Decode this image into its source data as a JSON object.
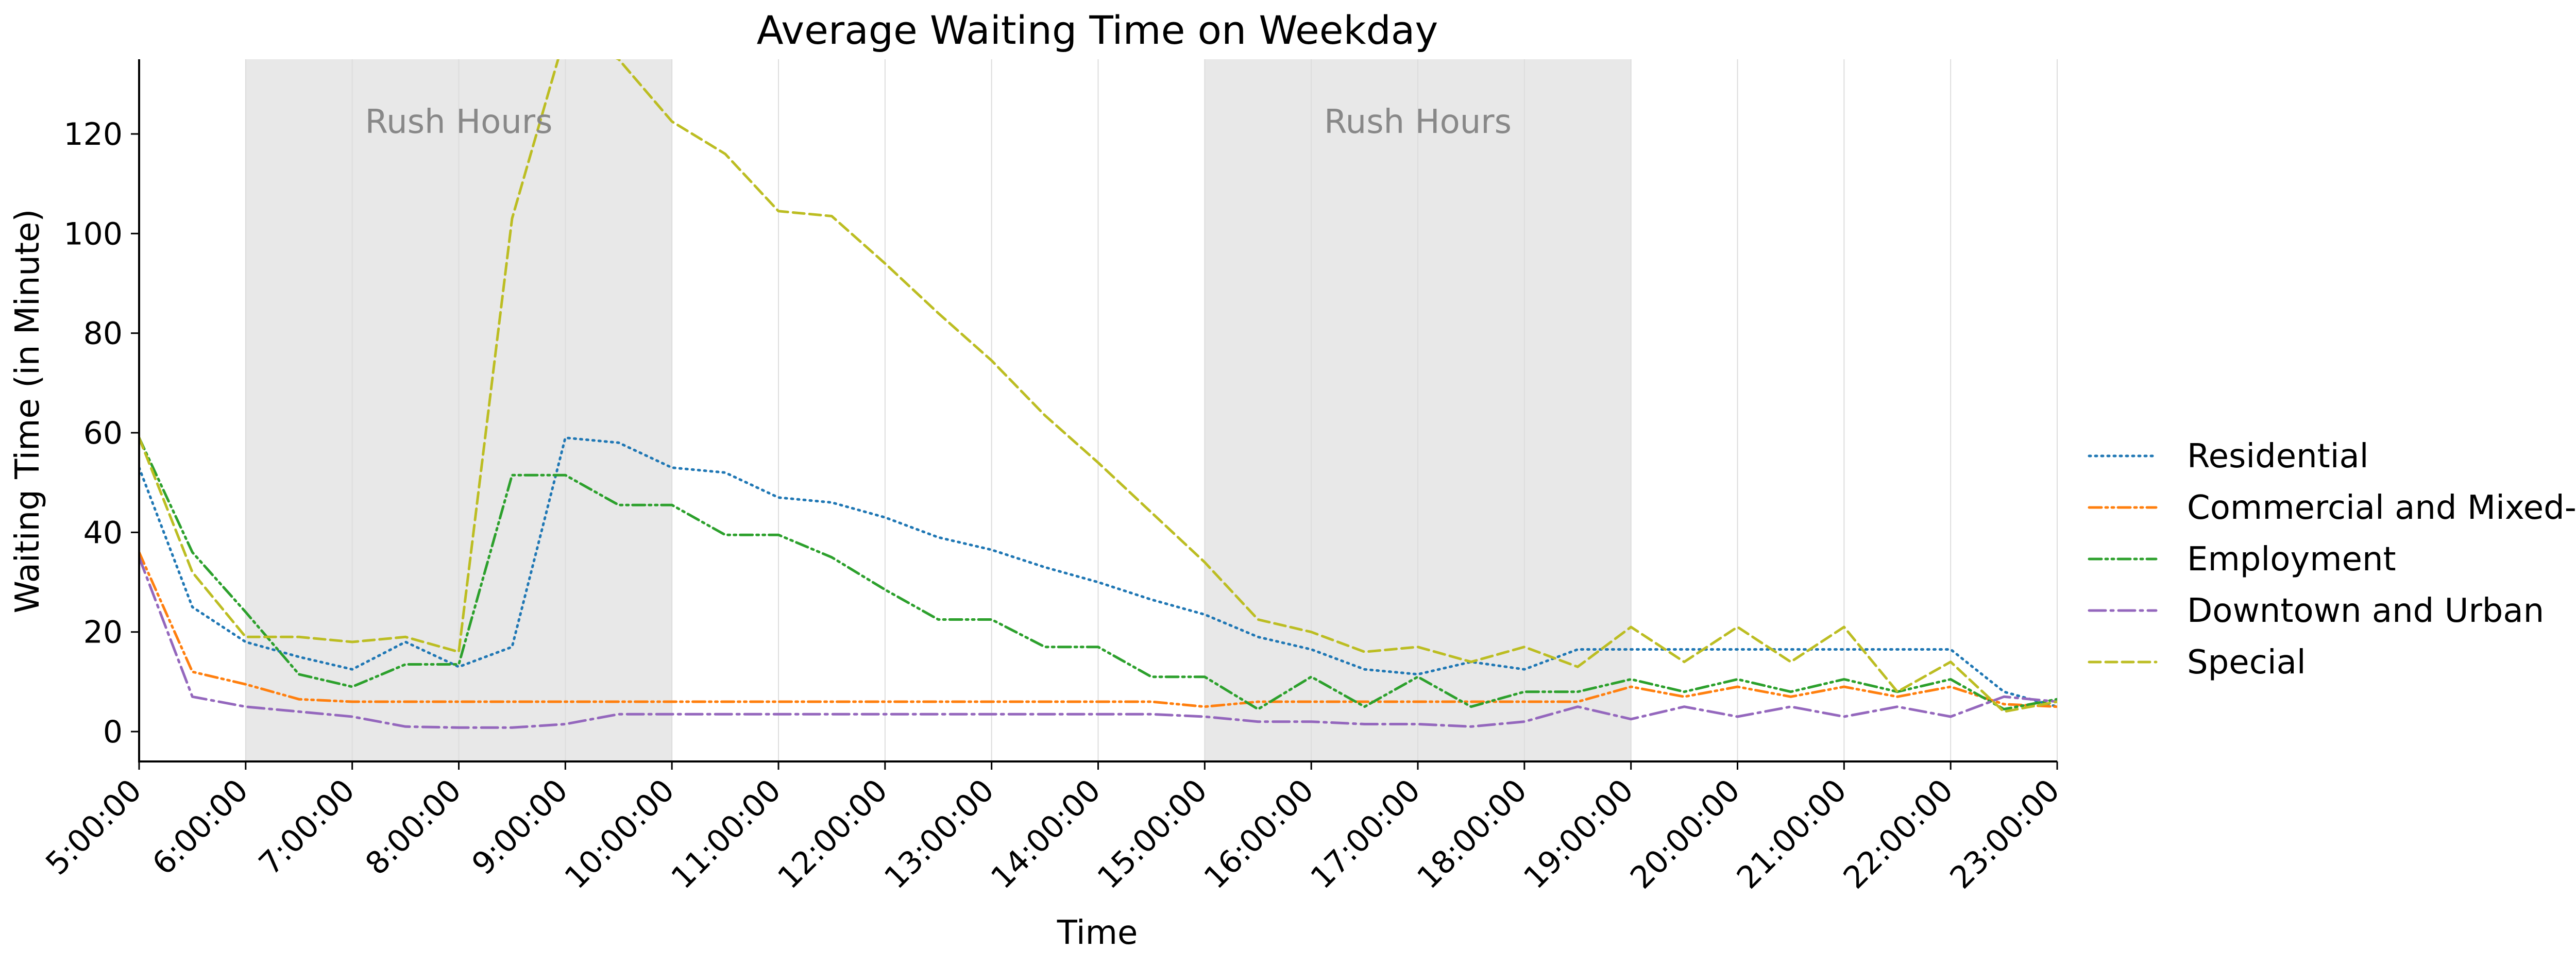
{
  "chart_data": {
    "type": "line",
    "title": "Average Waiting Time on Weekday",
    "xlabel": "Time",
    "ylabel": "Waiting Time (in Minute)",
    "x_ticks": [
      "5:00:00",
      "6:00:00",
      "7:00:00",
      "8:00:00",
      "9:00:00",
      "10:00:00",
      "11:00:00",
      "12:00:00",
      "13:00:00",
      "14:00:00",
      "15:00:00",
      "16:00:00",
      "17:00:00",
      "18:00:00",
      "19:00:00",
      "20:00:00",
      "21:00:00",
      "22:00:00",
      "23:00:00"
    ],
    "y_ticks": [
      0,
      20,
      40,
      60,
      80,
      100,
      120
    ],
    "xlim": [
      5,
      23
    ],
    "ylim": [
      -6,
      135
    ],
    "x_unit": "hour of day",
    "grid": "vertical lines at each hour",
    "legend_position": "right",
    "bands": [
      {
        "label": "Rush Hours",
        "start": 6,
        "end": 10
      },
      {
        "label": "Rush Hours",
        "start": 15,
        "end": 19
      }
    ],
    "x": [
      5,
      5.5,
      6,
      6.5,
      7,
      7.5,
      8,
      8.5,
      9,
      9.5,
      10,
      10.5,
      11,
      11.5,
      12,
      12.5,
      13,
      13.5,
      14,
      14.5,
      15,
      15.5,
      16,
      16.5,
      17,
      17.5,
      18,
      18.5,
      19,
      19.5,
      20,
      20.5,
      21,
      21.5,
      22,
      22.5,
      23
    ],
    "series": [
      {
        "name": "Residential",
        "color": "#1f77b4",
        "dash": "dotted",
        "values": [
          53,
          25,
          18,
          15,
          12.5,
          18,
          13,
          17,
          59,
          58,
          53,
          52,
          47,
          46,
          43,
          39,
          36.5,
          33,
          30,
          26.5,
          23.5,
          19,
          16.5,
          12.5,
          11.5,
          14,
          12.5,
          16.5,
          16.5,
          16.5,
          16.5,
          16.5,
          16.5,
          16.5,
          16.5,
          8,
          5
        ]
      },
      {
        "name": "Commercial and Mixed-Use",
        "color": "#ff7f0e",
        "dash": "dashdotdot",
        "values": [
          36,
          12,
          9.5,
          6.5,
          6,
          6,
          6,
          6,
          6,
          6,
          6,
          6,
          6,
          6,
          6,
          6,
          6,
          6,
          6,
          6,
          5,
          6,
          6,
          6,
          6,
          6,
          6,
          6,
          9,
          7,
          9,
          7,
          9,
          7,
          9,
          5.5,
          5
        ]
      },
      {
        "name": "Employment",
        "color": "#2ca02c",
        "dash": "dashdotdot",
        "values": [
          59,
          36,
          24,
          11.5,
          9,
          13.5,
          13.5,
          51.5,
          51.5,
          45.5,
          45.5,
          39.5,
          39.5,
          35,
          28.5,
          22.5,
          22.5,
          17,
          17,
          11,
          11,
          4.5,
          11,
          5,
          11,
          5,
          8,
          8,
          10.5,
          8,
          10.5,
          8,
          10.5,
          8,
          10.5,
          4.5,
          6.5
        ]
      },
      {
        "name": "Downtown and Urban",
        "color": "#9467bd",
        "dash": "dashdot",
        "values": [
          35,
          7,
          5,
          4,
          3,
          1,
          0.8,
          0.8,
          1.5,
          3.5,
          3.5,
          3.5,
          3.5,
          3.5,
          3.5,
          3.5,
          3.5,
          3.5,
          3.5,
          3.5,
          3,
          2,
          2,
          1.5,
          1.5,
          1,
          2,
          5,
          2.5,
          5,
          3,
          5,
          3,
          5,
          3,
          7,
          6
        ]
      },
      {
        "name": "Special",
        "color": "#bcbd22",
        "dash": "dashed",
        "values": [
          59,
          32,
          19,
          19,
          18,
          19,
          16,
          103,
          140,
          135,
          122.5,
          116,
          104.5,
          103.5,
          94,
          84,
          74.5,
          63.5,
          54,
          44,
          34,
          22.5,
          20,
          16,
          17,
          14,
          17,
          13,
          21,
          14,
          21,
          14,
          21,
          8,
          14,
          4,
          6
        ]
      }
    ]
  }
}
